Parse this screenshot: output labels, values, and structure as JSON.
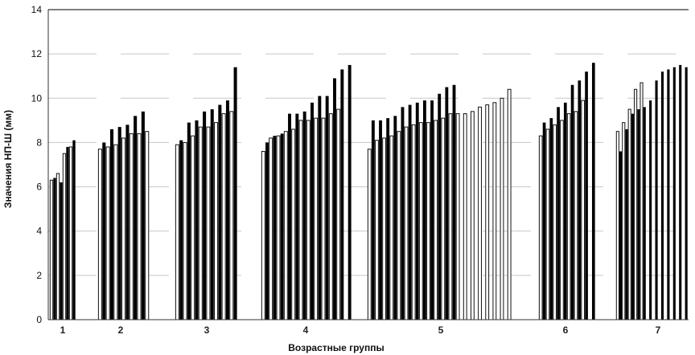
{
  "chart_data": {
    "type": "bar",
    "xlabel": "Возрастные группы",
    "ylabel": "Значения НП-Ш (мм)",
    "ylim": [
      0,
      14
    ],
    "yticks": [
      0,
      2,
      4,
      6,
      8,
      10,
      12,
      14
    ],
    "grid": true,
    "groups": [
      {
        "label": "1",
        "dark": [
          6.4,
          6.2,
          7.8,
          8.1
        ],
        "light": [
          6.3,
          6.6,
          7.5,
          7.8
        ]
      },
      {
        "label": "2",
        "dark": [
          8.0,
          8.6,
          8.7,
          8.8,
          9.2,
          9.4
        ],
        "light": [
          7.7,
          7.8,
          7.9,
          8.2,
          8.4,
          8.4,
          8.5
        ]
      },
      {
        "label": "3",
        "dark": [
          8.1,
          8.9,
          9.0,
          9.4,
          9.5,
          9.7,
          9.9,
          11.4
        ],
        "light": [
          7.9,
          8.0,
          8.3,
          8.7,
          8.7,
          8.9,
          9.3,
          9.4
        ]
      },
      {
        "label": "4",
        "dark": [
          8.0,
          8.3,
          8.4,
          9.3,
          9.3,
          9.4,
          9.8,
          10.1,
          10.1,
          10.9,
          11.3,
          11.5
        ],
        "light": [
          7.6,
          8.2,
          8.3,
          8.5,
          8.6,
          9.0,
          9.0,
          9.1,
          9.1,
          9.3,
          9.5
        ]
      },
      {
        "label": "5",
        "dark": [
          9.0,
          9.0,
          9.1,
          9.2,
          9.6,
          9.7,
          9.8,
          9.9,
          9.9,
          10.2,
          10.5,
          10.6
        ],
        "light": [
          7.7,
          8.1,
          8.2,
          8.3,
          8.5,
          8.7,
          8.8,
          8.9,
          8.9,
          9.0,
          9.1,
          9.3,
          9.3,
          9.3,
          9.4,
          9.6,
          9.7,
          9.8,
          10.0,
          10.4
        ]
      },
      {
        "label": "6",
        "dark": [
          8.9,
          9.1,
          9.6,
          9.8,
          10.6,
          10.8,
          11.2,
          11.6
        ],
        "light": [
          8.3,
          8.6,
          8.8,
          9.0,
          9.3,
          9.4,
          9.9
        ]
      },
      {
        "label": "7",
        "dark": [
          7.6,
          8.6,
          9.3,
          9.5,
          9.6,
          9.9,
          10.8,
          11.2,
          11.3,
          11.4,
          11.5,
          11.4
        ],
        "light": [
          8.5,
          8.9,
          9.5,
          10.4,
          10.7
        ]
      }
    ],
    "colors": {
      "dark": "#000000",
      "light": "#ffffff",
      "grid": "#c8c8c8",
      "axis": "#333333"
    }
  }
}
